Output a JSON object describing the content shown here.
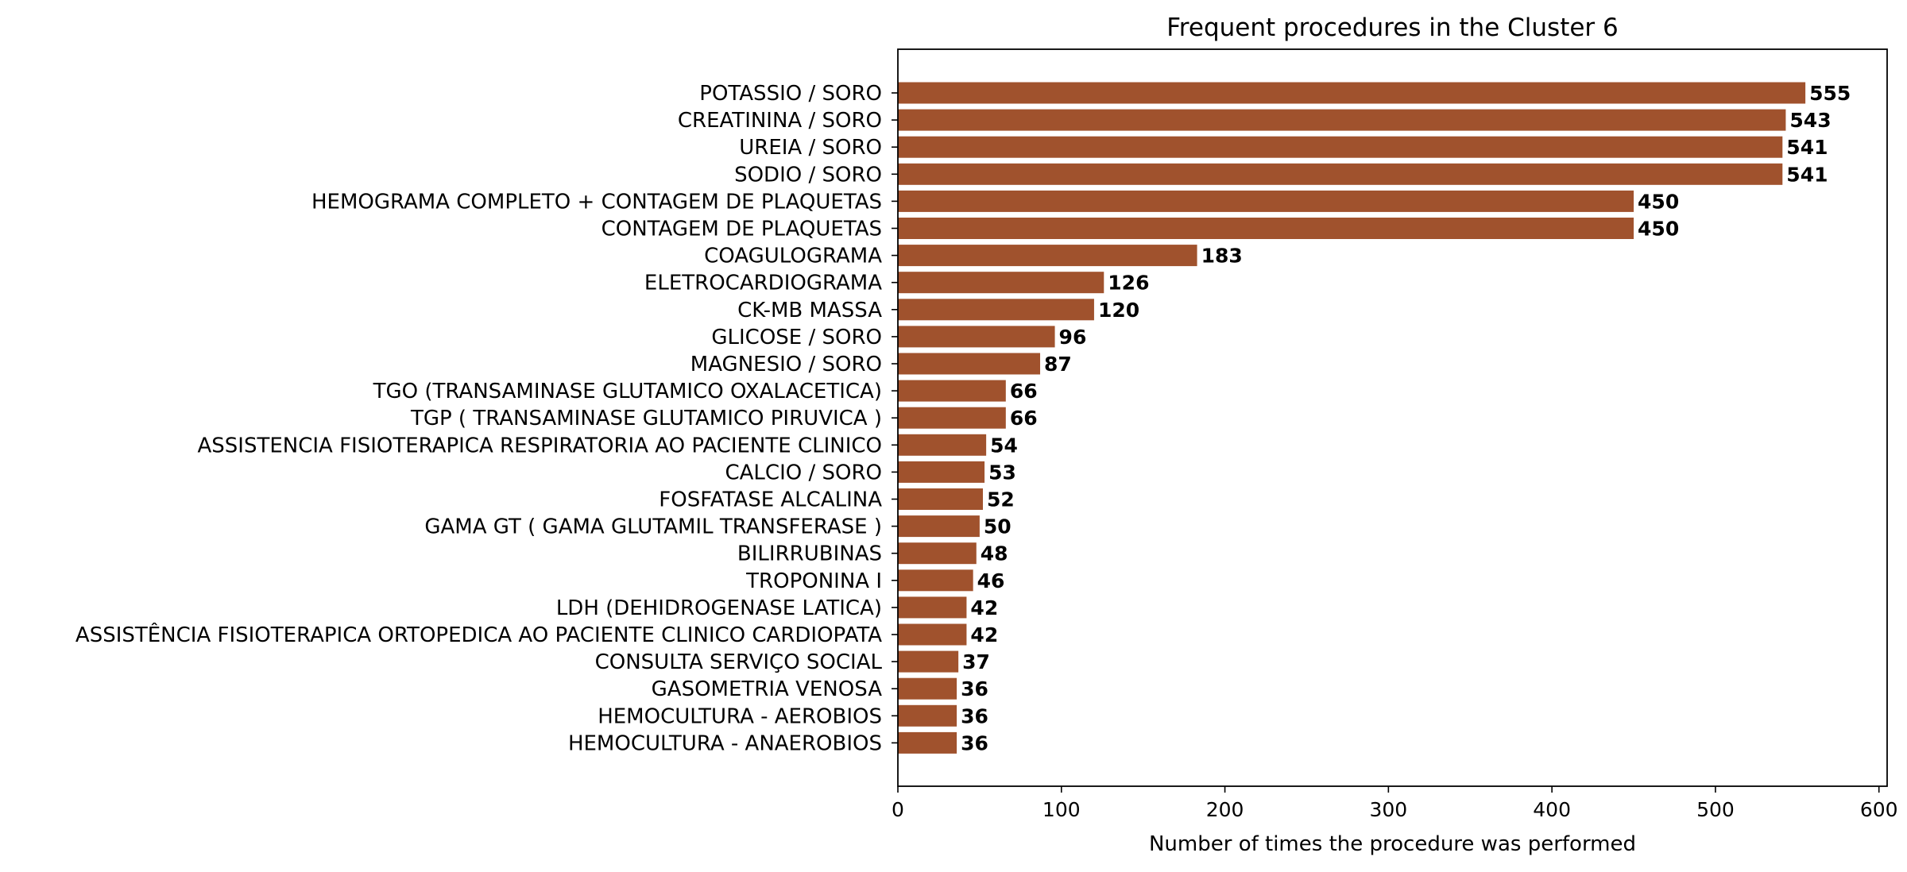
{
  "chart_data": {
    "type": "bar",
    "orientation": "horizontal",
    "title": "Frequent procedures in the Cluster  6",
    "xlabel": "Number of times the procedure was performed",
    "ylabel": "",
    "xlim": [
      0,
      605
    ],
    "xticks": [
      0,
      100,
      200,
      300,
      400,
      500,
      600
    ],
    "bar_color": "#a0522d",
    "grid": false,
    "legend": "none",
    "categories": [
      "POTASSIO / SORO",
      "CREATININA / SORO",
      "UREIA / SORO",
      "SODIO / SORO",
      "HEMOGRAMA COMPLETO + CONTAGEM DE PLAQUETAS",
      "CONTAGEM DE PLAQUETAS",
      "COAGULOGRAMA",
      "ELETROCARDIOGRAMA",
      "CK-MB  MASSA",
      "GLICOSE / SORO",
      "MAGNESIO / SORO",
      "TGO (TRANSAMINASE GLUTAMICO OXALACETICA)",
      "TGP ( TRANSAMINASE GLUTAMICO PIRUVICA )",
      "ASSISTENCIA FISIOTERAPICA RESPIRATORIA AO PACIENTE CLINICO",
      "CALCIO / SORO",
      "FOSFATASE ALCALINA",
      "GAMA GT ( GAMA GLUTAMIL TRANSFERASE )",
      "BILIRRUBINAS",
      "TROPONINA I",
      "LDH (DEHIDROGENASE LATICA)",
      "ASSISTÊNCIA FISIOTERAPICA ORTOPEDICA AO PACIENTE CLINICO CARDIOPATA",
      "CONSULTA SERVIÇO SOCIAL",
      "GASOMETRIA VENOSA",
      "HEMOCULTURA -  AEROBIOS",
      "HEMOCULTURA -  ANAEROBIOS"
    ],
    "values": [
      555,
      543,
      541,
      541,
      450,
      450,
      183,
      126,
      120,
      96,
      87,
      66,
      66,
      54,
      53,
      52,
      50,
      48,
      46,
      42,
      42,
      37,
      36,
      36,
      36
    ]
  }
}
